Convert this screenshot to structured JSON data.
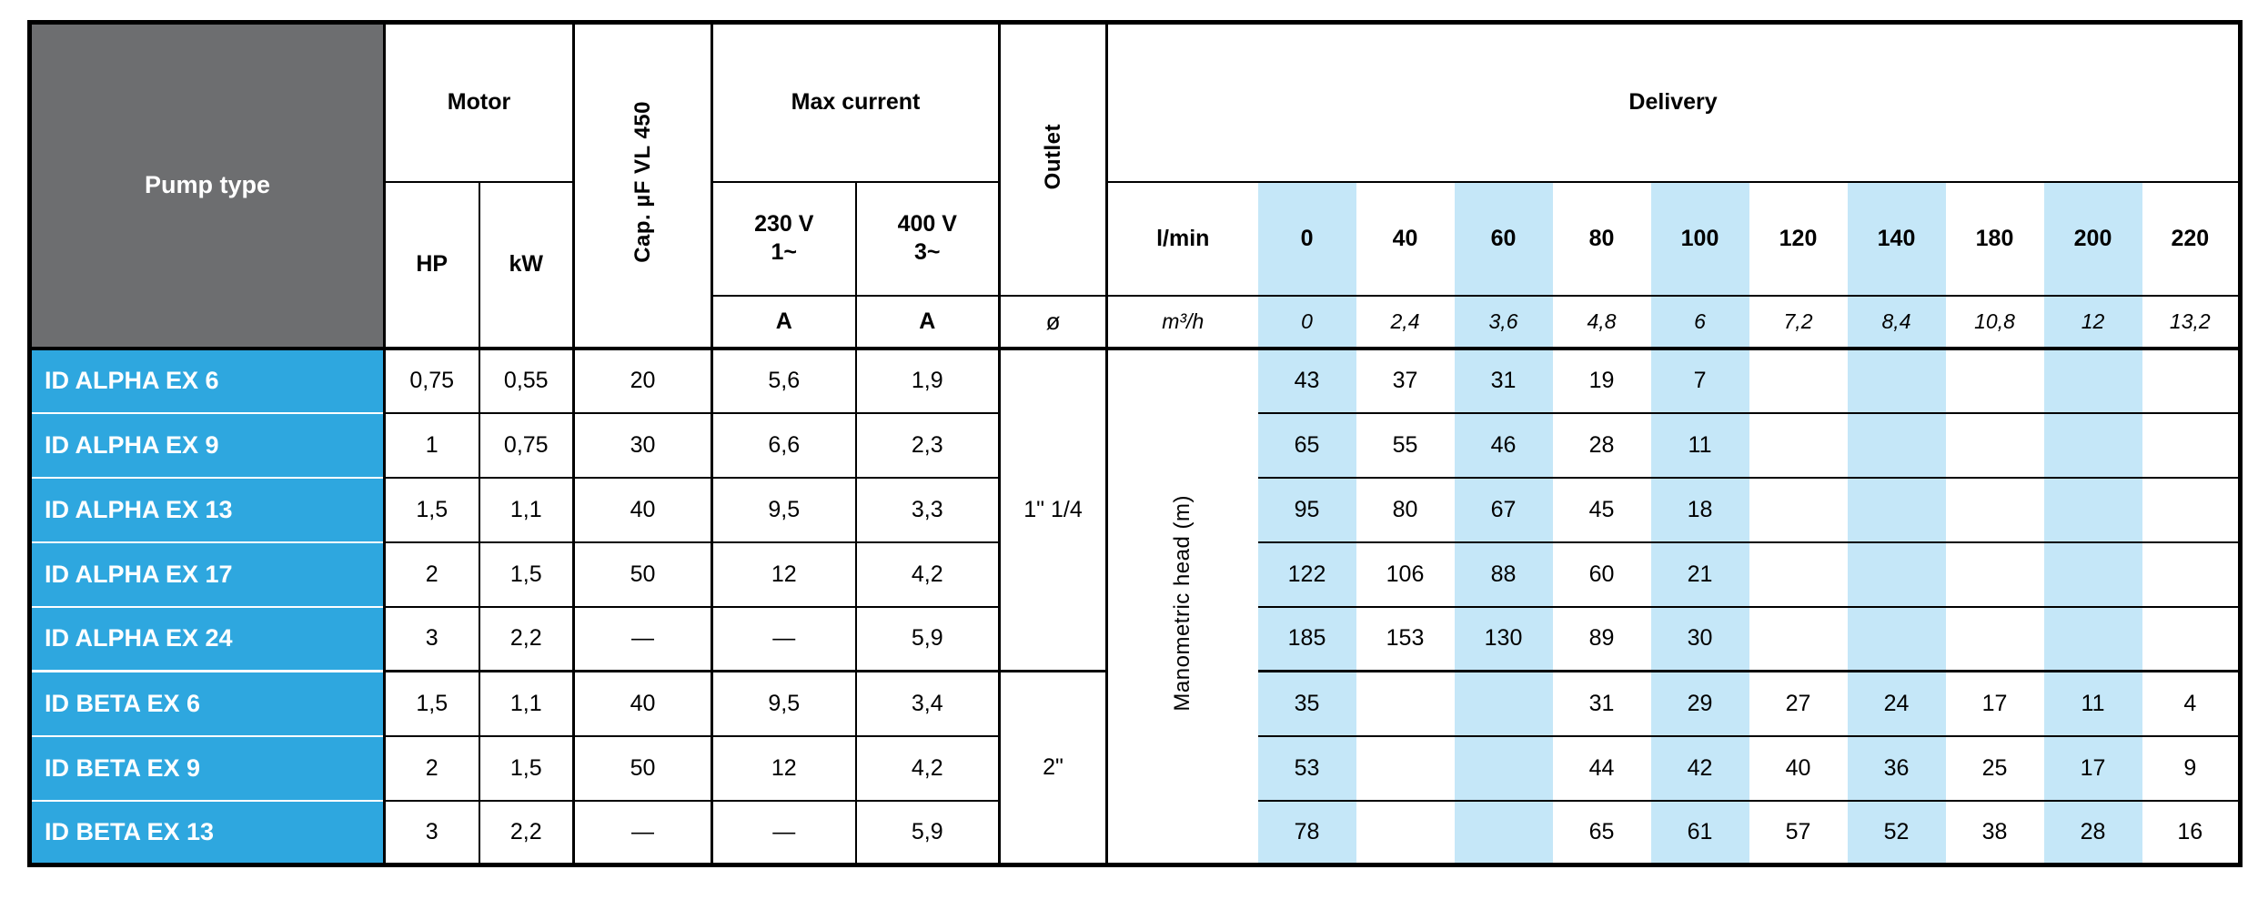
{
  "table": {
    "header": {
      "pump_type": "Pump type",
      "motor": "Motor",
      "hp": "HP",
      "kw": "kW",
      "capacitor": "Cap. µF VL 450",
      "max_current": "Max current",
      "v230_line1": "230 V",
      "v230_line2": "1~",
      "v400_line1": "400 V",
      "v400_line2": "3~",
      "amp_230": "A",
      "amp_400": "A",
      "outlet": "Outlet",
      "diameter_symbol": "ø",
      "delivery": "Delivery",
      "lmin_label": "l/min",
      "m3h_label": "m³/h",
      "manometric_label": "Manometric head (m)",
      "flow_lmin": [
        "0",
        "40",
        "60",
        "80",
        "100",
        "120",
        "140",
        "180",
        "200",
        "220"
      ],
      "flow_m3h": [
        "0",
        "2,4",
        "3,6",
        "4,8",
        "6",
        "7,2",
        "8,4",
        "10,8",
        "12",
        "13,2"
      ]
    },
    "outlet_groups": [
      {
        "label": "1\" 1/4",
        "rows": 5
      },
      {
        "label": "2\"",
        "rows": 3
      }
    ],
    "rows": [
      {
        "name": "ID ALPHA EX 6",
        "hp": "0,75",
        "kw": "0,55",
        "cap": "20",
        "a230": "5,6",
        "a400": "1,9",
        "heads": [
          "43",
          "37",
          "31",
          "19",
          "7",
          "",
          "",
          "",
          "",
          ""
        ]
      },
      {
        "name": "ID ALPHA EX 9",
        "hp": "1",
        "kw": "0,75",
        "cap": "30",
        "a230": "6,6",
        "a400": "2,3",
        "heads": [
          "65",
          "55",
          "46",
          "28",
          "11",
          "",
          "",
          "",
          "",
          ""
        ]
      },
      {
        "name": "ID ALPHA EX 13",
        "hp": "1,5",
        "kw": "1,1",
        "cap": "40",
        "a230": "9,5",
        "a400": "3,3",
        "heads": [
          "95",
          "80",
          "67",
          "45",
          "18",
          "",
          "",
          "",
          "",
          ""
        ]
      },
      {
        "name": "ID ALPHA EX 17",
        "hp": "2",
        "kw": "1,5",
        "cap": "50",
        "a230": "12",
        "a400": "4,2",
        "heads": [
          "122",
          "106",
          "88",
          "60",
          "21",
          "",
          "",
          "",
          "",
          ""
        ]
      },
      {
        "name": "ID ALPHA EX 24",
        "hp": "3",
        "kw": "2,2",
        "cap": "—",
        "a230": "—",
        "a400": "5,9",
        "heads": [
          "185",
          "153",
          "130",
          "89",
          "30",
          "",
          "",
          "",
          "",
          ""
        ]
      },
      {
        "name": "ID BETA EX 6",
        "hp": "1,5",
        "kw": "1,1",
        "cap": "40",
        "a230": "9,5",
        "a400": "3,4",
        "heads": [
          "35",
          "",
          "",
          "31",
          "29",
          "27",
          "24",
          "17",
          "11",
          "4"
        ]
      },
      {
        "name": "ID BETA EX 9",
        "hp": "2",
        "kw": "1,5",
        "cap": "50",
        "a230": "12",
        "a400": "4,2",
        "heads": [
          "53",
          "",
          "",
          "44",
          "42",
          "40",
          "36",
          "25",
          "17",
          "9"
        ]
      },
      {
        "name": "ID BETA EX 13",
        "hp": "3",
        "kw": "2,2",
        "cap": "—",
        "a230": "—",
        "a400": "5,9",
        "heads": [
          "78",
          "",
          "",
          "65",
          "61",
          "57",
          "52",
          "38",
          "28",
          "16"
        ]
      }
    ]
  },
  "highlighted_flow_columns": [
    0,
    2,
    4,
    6,
    8
  ],
  "colors": {
    "header_gray": "#6d6e70",
    "pump_name_blue": "#2ea7df",
    "column_highlight": "#c5e7f8",
    "border_black": "#000000"
  }
}
